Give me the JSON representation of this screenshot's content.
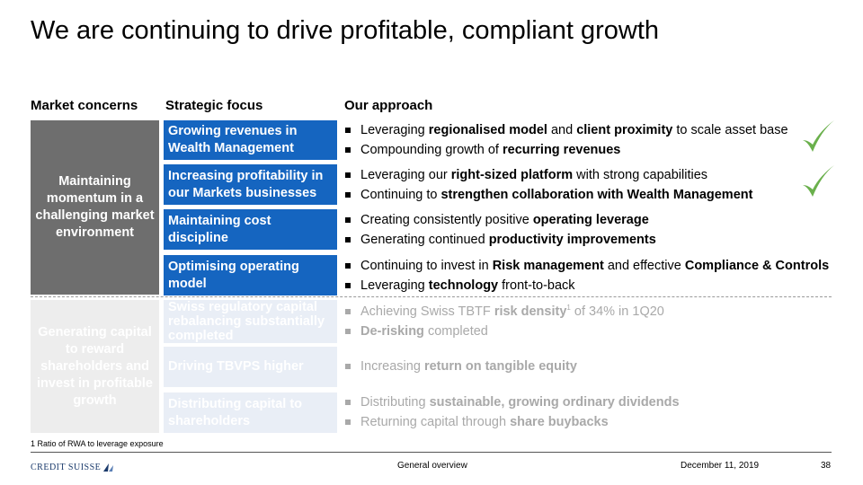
{
  "title": "We are continuing to drive profitable, compliant growth",
  "headers": {
    "concerns": "Market concerns",
    "focus": "Strategic focus",
    "approach": "Our approach"
  },
  "concerns": [
    {
      "text": "Maintaining momentum in a challenging market environment"
    },
    {
      "text": "Generating capital to reward shareholders and invest in profitable growth"
    }
  ],
  "rows": [
    {
      "focus": "Growing revenues in Wealth Management",
      "checked": true,
      "bullets": [
        [
          {
            "t": "Leveraging "
          },
          {
            "t": "regionalised model",
            "b": true
          },
          {
            "t": " and "
          },
          {
            "t": "client proximity",
            "b": true
          },
          {
            "t": " to scale asset base"
          }
        ],
        [
          {
            "t": "Compounding growth of "
          },
          {
            "t": "recurring revenues",
            "b": true
          }
        ]
      ]
    },
    {
      "focus": "Increasing profitability in our Markets businesses",
      "checked": true,
      "bullets": [
        [
          {
            "t": "Leveraging our "
          },
          {
            "t": "right-sized platform",
            "b": true
          },
          {
            "t": " with strong capabilities"
          }
        ],
        [
          {
            "t": "Continuing to "
          },
          {
            "t": "strengthen collaboration with Wealth Management",
            "b": true
          }
        ]
      ]
    },
    {
      "focus": "Maintaining cost discipline",
      "checked": false,
      "bullets": [
        [
          {
            "t": "Creating consistently positive "
          },
          {
            "t": "operating leverage",
            "b": true
          }
        ],
        [
          {
            "t": "Generating continued "
          },
          {
            "t": "productivity improvements",
            "b": true
          }
        ]
      ]
    },
    {
      "focus": "Optimising operating model",
      "checked": false,
      "bullets": [
        [
          {
            "t": "Continuing to invest in "
          },
          {
            "t": "Risk management",
            "b": true
          },
          {
            "t": " and effective "
          },
          {
            "t": "Compliance & Controls",
            "b": true
          }
        ],
        [
          {
            "t": "Leveraging "
          },
          {
            "t": "technology",
            "b": true
          },
          {
            "t": " front-to-back"
          }
        ]
      ]
    },
    {
      "focus": "Swiss regulatory capital rebalancing substantially completed",
      "checked": false,
      "bullets": [
        [
          {
            "t": "Achieving Swiss TBTF "
          },
          {
            "t": "risk density",
            "b": true
          },
          {
            "t": "1",
            "sup": true
          },
          {
            "t": " of 34% in 1Q20"
          }
        ],
        [
          {
            "t": "De-risking",
            "b": true
          },
          {
            "t": " completed"
          }
        ]
      ]
    },
    {
      "focus": "Driving TBVPS higher",
      "checked": false,
      "bullets": [
        [
          {
            "t": "Increasing "
          },
          {
            "t": "return on tangible equity",
            "b": true
          }
        ]
      ]
    },
    {
      "focus": "Distributing capital to shareholders",
      "checked": false,
      "bullets": [
        [
          {
            "t": "Distributing "
          },
          {
            "t": "sustainable, growing ordinary dividends",
            "b": true
          }
        ],
        [
          {
            "t": "Returning capital through "
          },
          {
            "t": "share buybacks",
            "b": true
          }
        ]
      ]
    }
  ],
  "footnote": "1 Ratio of RWA to leverage exposure",
  "footer": {
    "logo": "CREDIT SUISSE",
    "center": "General overview",
    "date": "December 11, 2019",
    "page": "38"
  },
  "colors": {
    "accent_blue": "#1565c0",
    "faded_blue": "#e9eef6",
    "concern_gray": "#6e6e6e",
    "faded_gray": "#ededed",
    "check_green": "#6ab04c"
  }
}
